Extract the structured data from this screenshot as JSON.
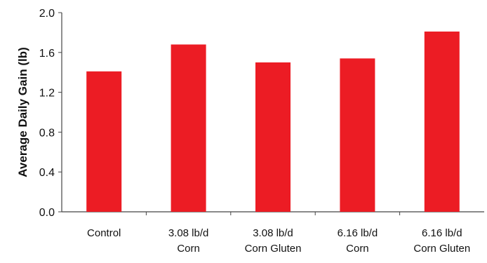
{
  "chart_data": {
    "type": "bar",
    "title": "",
    "xlabel": "",
    "ylabel": "Average Daily Gain (lb)",
    "categories": [
      [
        "Control"
      ],
      [
        "3.08 lb/d",
        "Corn"
      ],
      [
        "3.08 lb/d",
        "Corn Gluten"
      ],
      [
        "6.16 lb/d",
        "Corn"
      ],
      [
        "6.16 lb/d",
        "Corn Gluten"
      ]
    ],
    "values": [
      1.41,
      1.68,
      1.5,
      1.54,
      1.81
    ],
    "ylim": [
      0,
      2.0
    ],
    "yticks": [
      "0.0",
      "0.4",
      "0.8",
      "1.2",
      "1.6",
      "2.0"
    ],
    "bar_color": "#ec1c24",
    "grid": false
  }
}
